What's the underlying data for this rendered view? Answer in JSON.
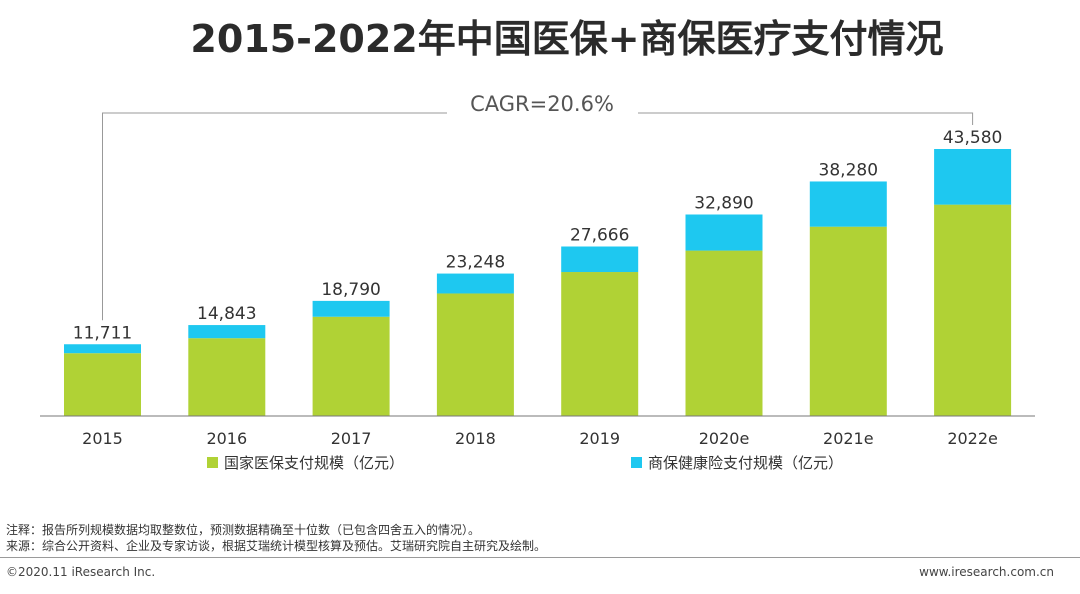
{
  "chart_data": {
    "type": "bar",
    "stacked": true,
    "title": "2015-2022年中国医保+商保医疗支付情况",
    "categories": [
      "2015",
      "2016",
      "2017",
      "2018",
      "2019",
      "2020e",
      "2021e",
      "2022e"
    ],
    "series": [
      {
        "name": "国家医保支付规模（亿元）",
        "color": "#B0D235",
        "values": [
          10250,
          12700,
          16200,
          20000,
          23500,
          27000,
          30900,
          34500
        ]
      },
      {
        "name": "商保健康险支付规模（亿元）",
        "color": "#1EC8F0",
        "values": [
          1461,
          2143,
          2590,
          3248,
          4166,
          5890,
          7380,
          9080
        ]
      }
    ],
    "totals": [
      "11,711",
      "14,843",
      "18,790",
      "23,248",
      "27,666",
      "32,890",
      "38,280",
      "43,580"
    ],
    "ylim": [
      0,
      50000
    ],
    "annotation": "CAGR=20.6%"
  },
  "notes": {
    "line1": "注释：报告所列规模数据均取整数位，预测数据精确至十位数（已包含四舍五入的情况）。",
    "line2": "来源：综合公开资料、企业及专家访谈，根据艾瑞统计模型核算及预估。艾瑞研究院自主研究及绘制。"
  },
  "footer": {
    "copyright": "©2020.11 iResearch Inc.",
    "website": "www.iresearch.com.cn"
  }
}
